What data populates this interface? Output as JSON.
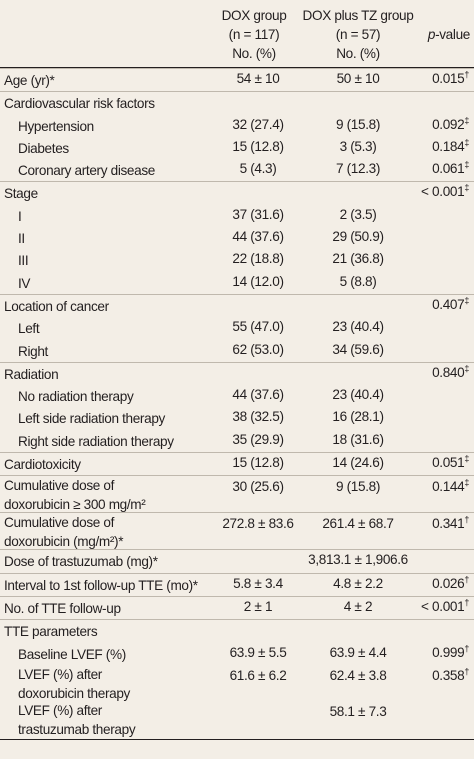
{
  "header": {
    "dox": [
      "DOX group",
      "(n = 117)",
      "No. (%)"
    ],
    "tz": [
      "DOX plus TZ group",
      "(n = 57)",
      "No. (%)"
    ],
    "p": "p",
    "p_suffix": "-value"
  },
  "rows": [
    {
      "label": [
        "Age (yr)*"
      ],
      "dox": "54 ± 10",
      "tz": "50 ± 10",
      "p": "0.015",
      "p_mark": "†",
      "sep": true
    },
    {
      "label": [
        "Cardiovascular risk factors"
      ],
      "dox": "",
      "tz": "",
      "p": "",
      "p_mark": "",
      "sep": true
    },
    {
      "label": [
        "Hypertension"
      ],
      "indent": true,
      "dox": "32 (27.4)",
      "tz": "9 (15.8)",
      "p": "0.092",
      "p_mark": "‡"
    },
    {
      "label": [
        "Diabetes"
      ],
      "indent": true,
      "dox": "15 (12.8)",
      "tz": "3 (5.3)",
      "p": "0.184",
      "p_mark": "‡"
    },
    {
      "label": [
        "Coronary artery disease"
      ],
      "indent": true,
      "dox": "5 (4.3)",
      "tz": "7 (12.3)",
      "p": "0.061",
      "p_mark": "‡"
    },
    {
      "label": [
        "Stage"
      ],
      "dox": "",
      "tz": "",
      "p": "< 0.001",
      "p_mark": "‡",
      "sep": true
    },
    {
      "label": [
        "I"
      ],
      "indent": true,
      "dox": "37 (31.6)",
      "tz": "2 (3.5)",
      "p": "",
      "p_mark": ""
    },
    {
      "label": [
        "II"
      ],
      "indent": true,
      "dox": "44 (37.6)",
      "tz": "29 (50.9)",
      "p": "",
      "p_mark": ""
    },
    {
      "label": [
        "III"
      ],
      "indent": true,
      "dox": "22 (18.8)",
      "tz": "21 (36.8)",
      "p": "",
      "p_mark": ""
    },
    {
      "label": [
        "IV"
      ],
      "indent": true,
      "dox": "14 (12.0)",
      "tz": "5 (8.8)",
      "p": "",
      "p_mark": ""
    },
    {
      "label": [
        "Location of cancer"
      ],
      "dox": "",
      "tz": "",
      "p": "0.407",
      "p_mark": "‡",
      "sep": true
    },
    {
      "label": [
        "Left"
      ],
      "indent": true,
      "dox": "55 (47.0)",
      "tz": "23 (40.4)",
      "p": "",
      "p_mark": ""
    },
    {
      "label": [
        "Right"
      ],
      "indent": true,
      "dox": "62 (53.0)",
      "tz": "34 (59.6)",
      "p": "",
      "p_mark": ""
    },
    {
      "label": [
        "Radiation"
      ],
      "dox": "",
      "tz": "",
      "p": "0.840",
      "p_mark": "‡",
      "sep": true
    },
    {
      "label": [
        "No radiation therapy"
      ],
      "indent": true,
      "dox": "44 (37.6)",
      "tz": "23 (40.4)",
      "p": "",
      "p_mark": ""
    },
    {
      "label": [
        "Left side radiation therapy"
      ],
      "indent": true,
      "dox": "38 (32.5)",
      "tz": "16 (28.1)",
      "p": "",
      "p_mark": ""
    },
    {
      "label": [
        "Right side radiation therapy"
      ],
      "indent": true,
      "dox": "35 (29.9)",
      "tz": "18 (31.6)",
      "p": "",
      "p_mark": ""
    },
    {
      "label": [
        "Cardiotoxicity"
      ],
      "dox": "15 (12.8)",
      "tz": "14 (24.6)",
      "p": "0.051",
      "p_mark": "‡",
      "sep": true
    },
    {
      "label": [
        "Cumulative dose of",
        "doxorubicin ≥ 300 mg/m²"
      ],
      "dox": "30 (25.6)",
      "tz": "9 (15.8)",
      "p": "0.144",
      "p_mark": "‡",
      "sep": true
    },
    {
      "label": [
        "Cumulative dose of",
        "doxorubicin (mg/m²)*"
      ],
      "dox": "272.8 ± 83.6",
      "tz": "261.4 ± 68.7",
      "p": "0.341",
      "p_mark": "†",
      "sep": true
    },
    {
      "label": [
        "Dose of trastuzumab (mg)*"
      ],
      "dox": "",
      "tz": "3,813.1 ± 1,906.6",
      "p": "",
      "p_mark": "",
      "sep": true
    },
    {
      "label": [
        "Interval to 1st follow-up TTE (mo)*"
      ],
      "dox": "5.8 ± 3.4",
      "tz": "4.8 ± 2.2",
      "p": "0.026",
      "p_mark": "†",
      "sep": true
    },
    {
      "label": [
        "No. of TTE follow-up"
      ],
      "dox": "2 ± 1",
      "tz": "4 ± 2",
      "p": "< 0.001",
      "p_mark": "†",
      "sep": true
    },
    {
      "label": [
        "TTE parameters"
      ],
      "dox": "",
      "tz": "",
      "p": "",
      "p_mark": "",
      "sep": true
    },
    {
      "label": [
        "Baseline LVEF (%)"
      ],
      "indent": true,
      "dox": "63.9 ± 5.5",
      "tz": "63.9 ± 4.4",
      "p": "0.999",
      "p_mark": "†"
    },
    {
      "label": [
        "LVEF (%) after",
        "doxorubicin therapy"
      ],
      "indent": true,
      "dox": "61.6 ± 6.2",
      "tz": "62.4 ± 3.8",
      "p": "0.358",
      "p_mark": "†"
    },
    {
      "label": [
        "LVEF (%) after",
        "trastuzumab therapy"
      ],
      "indent": true,
      "dox": "",
      "tz": "58.1 ± 7.3",
      "p": "",
      "p_mark": ""
    }
  ]
}
